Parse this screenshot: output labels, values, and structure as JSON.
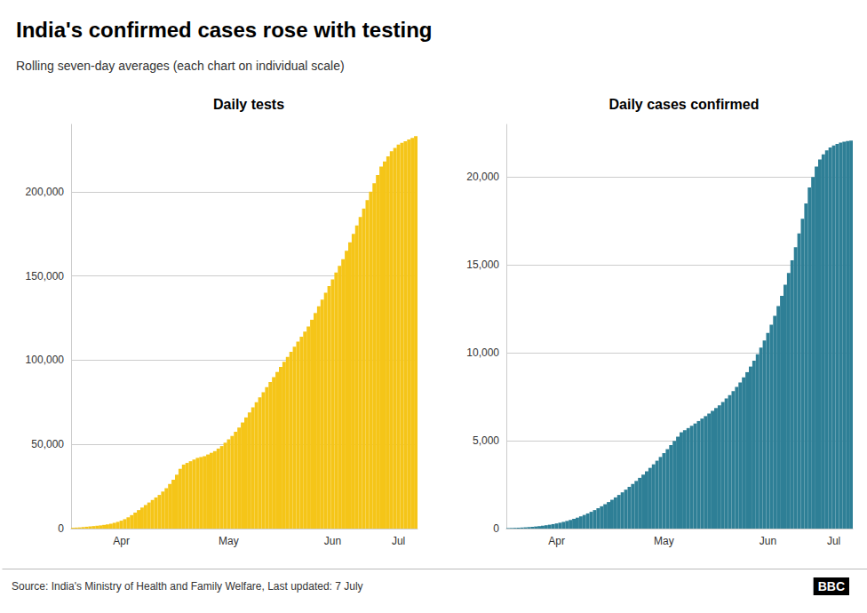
{
  "title": "India's confirmed cases rose with testing",
  "subtitle": "Rolling seven-day averages (each chart on individual scale)",
  "annotations": [
    "Source: India's Ministry of Health and Family Welfare, Last updated: 7 July",
    "BBC"
  ],
  "chart_data": [
    {
      "type": "bar",
      "title": "Daily tests",
      "categories": [
        null,
        null,
        null,
        null,
        null,
        null,
        null,
        null,
        null,
        null,
        null,
        null,
        null,
        null,
        "Apr",
        null,
        null,
        null,
        null,
        null,
        null,
        null,
        null,
        null,
        null,
        null,
        null,
        null,
        null,
        null,
        null,
        null,
        null,
        null,
        null,
        null,
        null,
        null,
        null,
        null,
        null,
        null,
        null,
        null,
        null,
        "May",
        null,
        null,
        null,
        null,
        null,
        null,
        null,
        null,
        null,
        null,
        null,
        null,
        null,
        null,
        null,
        null,
        null,
        null,
        null,
        null,
        null,
        null,
        null,
        null,
        null,
        null,
        null,
        null,
        null,
        "Jun",
        null,
        null,
        null,
        null,
        null,
        null,
        null,
        null,
        null,
        null,
        null,
        null,
        null,
        null,
        null,
        null,
        null,
        null,
        "Jul",
        null,
        null,
        null,
        null,
        null
      ],
      "values": [
        500,
        600,
        700,
        900,
        1100,
        1300,
        1500,
        1700,
        1900,
        2200,
        2500,
        2900,
        3400,
        4000,
        4700,
        5600,
        6700,
        8000,
        9500,
        11000,
        12500,
        14000,
        15500,
        17000,
        18500,
        20000,
        22000,
        24000,
        26500,
        29000,
        32000,
        35500,
        38000,
        39000,
        40000,
        41000,
        42000,
        42500,
        43000,
        44000,
        45000,
        46000,
        47500,
        49000,
        51000,
        53000,
        55000,
        57500,
        60000,
        63000,
        66000,
        69000,
        72000,
        75000,
        78000,
        81000,
        84000,
        87000,
        90000,
        93000,
        96000,
        99000,
        102000,
        105000,
        108000,
        111000,
        114000,
        117000,
        120000,
        124000,
        128000,
        132000,
        136000,
        140000,
        144000,
        148000,
        152000,
        156000,
        160000,
        165000,
        170000,
        175000,
        180000,
        185000,
        190000,
        195000,
        200000,
        205000,
        210000,
        215000,
        218000,
        221000,
        224000,
        226000,
        228000,
        229000,
        230000,
        231000,
        232000,
        233000
      ],
      "color": "#F5C518",
      "ylim": [
        0,
        240000
      ],
      "yticks": [
        0,
        {
          "value": 50000,
          "label": "50,000"
        },
        {
          "value": 100000,
          "label": "100,000"
        },
        {
          "value": 150000,
          "label": "150,000"
        },
        {
          "value": 200000,
          "label": "200,000"
        }
      ],
      "grid": true
    },
    {
      "type": "bar",
      "title": "Daily cases confirmed",
      "categories": [
        null,
        null,
        null,
        null,
        null,
        null,
        null,
        null,
        null,
        null,
        null,
        null,
        null,
        null,
        "Apr",
        null,
        null,
        null,
        null,
        null,
        null,
        null,
        null,
        null,
        null,
        null,
        null,
        null,
        null,
        null,
        null,
        null,
        null,
        null,
        null,
        null,
        null,
        null,
        null,
        null,
        null,
        null,
        null,
        null,
        null,
        "May",
        null,
        null,
        null,
        null,
        null,
        null,
        null,
        null,
        null,
        null,
        null,
        null,
        null,
        null,
        null,
        null,
        null,
        null,
        null,
        null,
        null,
        null,
        null,
        null,
        null,
        null,
        null,
        null,
        null,
        "Jun",
        null,
        null,
        null,
        null,
        null,
        null,
        null,
        null,
        null,
        null,
        null,
        null,
        null,
        null,
        null,
        null,
        null,
        null,
        "Jul",
        null,
        null,
        null,
        null,
        null
      ],
      "values": [
        30,
        35,
        42,
        50,
        60,
        72,
        86,
        102,
        120,
        140,
        165,
        192,
        222,
        256,
        294,
        336,
        383,
        435,
        492,
        555,
        623,
        697,
        777,
        863,
        956,
        1055,
        1160,
        1271,
        1388,
        1511,
        1640,
        1775,
        1916,
        2063,
        2216,
        2375,
        2540,
        2711,
        2888,
        3071,
        3260,
        3455,
        3656,
        3863,
        4076,
        4295,
        4520,
        4751,
        4988,
        5231,
        5480,
        5600,
        5720,
        5850,
        5980,
        6120,
        6260,
        6400,
        6550,
        6700,
        6860,
        7020,
        7200,
        7400,
        7600,
        7820,
        8060,
        8320,
        8600,
        8900,
        9220,
        9560,
        9920,
        10300,
        10700,
        11130,
        11600,
        12110,
        12660,
        13250,
        13880,
        14550,
        15260,
        16010,
        16800,
        17630,
        18500,
        19410,
        20000,
        20600,
        21000,
        21300,
        21520,
        21680,
        21800,
        21890,
        21960,
        22010,
        22050,
        22080
      ],
      "color": "#2E7F96",
      "ylim": [
        0,
        23000
      ],
      "yticks": [
        0,
        {
          "value": 5000,
          "label": "5,000"
        },
        {
          "value": 10000,
          "label": "10,000"
        },
        {
          "value": 15000,
          "label": "15,000"
        },
        {
          "value": 20000,
          "label": "20,000"
        }
      ],
      "grid": true
    }
  ]
}
